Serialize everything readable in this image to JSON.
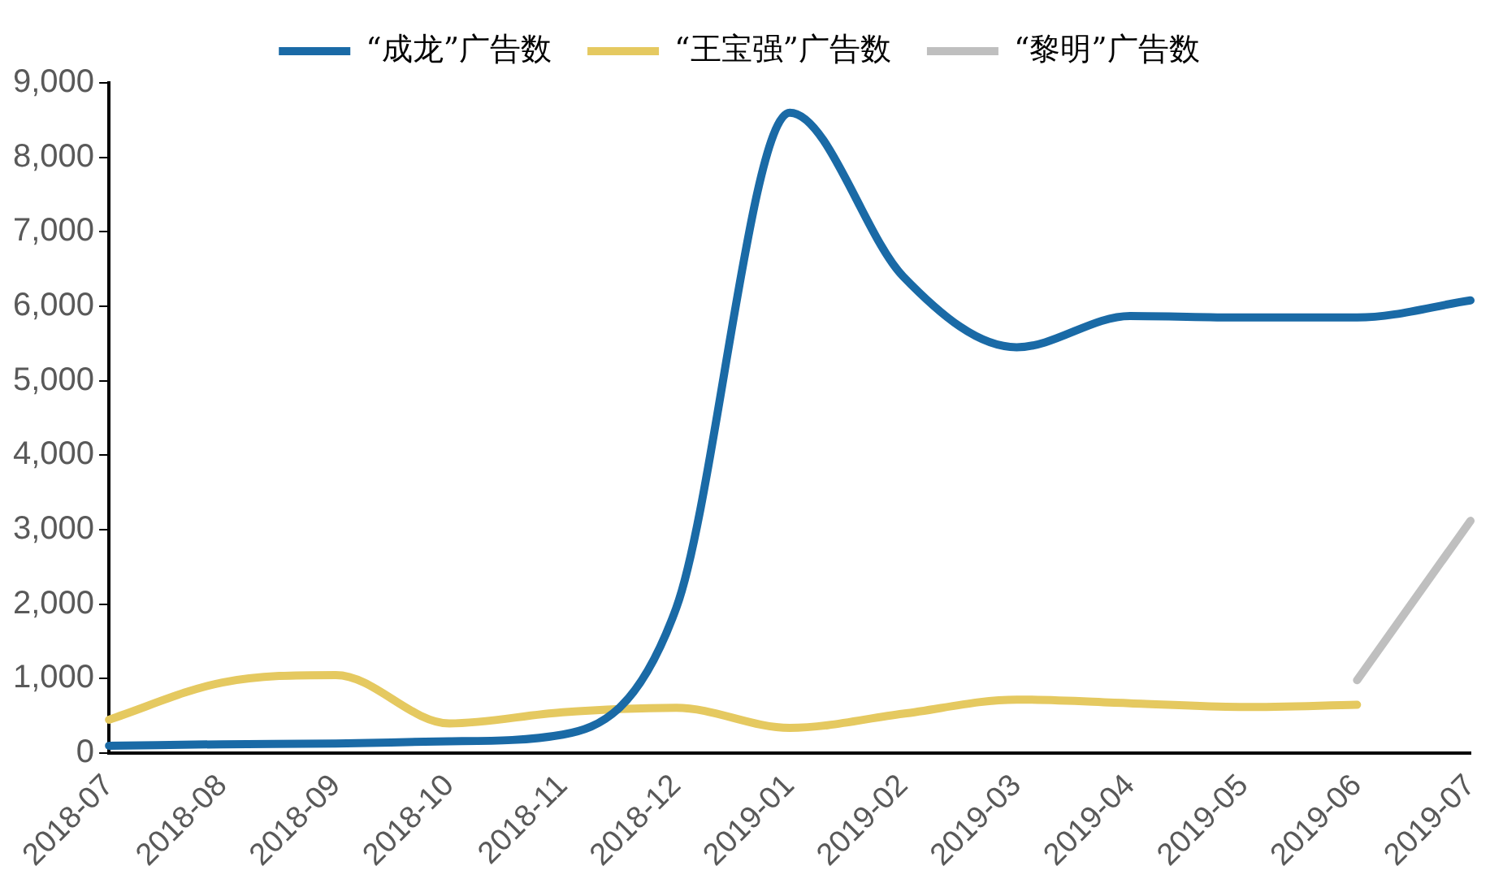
{
  "chart_data": {
    "type": "line",
    "categories": [
      "2018-07",
      "2018-08",
      "2018-09",
      "2018-10",
      "2018-11",
      "2018-12",
      "2019-01",
      "2019-02",
      "2019-03",
      "2019-04",
      "2019-05",
      "2019-06",
      "2019-07"
    ],
    "series": [
      {
        "name": "“成龙”广告数",
        "color": "#1a6aa6",
        "values": [
          100,
          120,
          130,
          160,
          250,
          1950,
          8600,
          6400,
          5450,
          5870,
          5850,
          5850,
          6080
        ]
      },
      {
        "name": "“王宝强”广告数",
        "color": "#e5c960",
        "values": [
          450,
          950,
          1050,
          400,
          550,
          610,
          340,
          530,
          720,
          670,
          620,
          650,
          null
        ]
      },
      {
        "name": "“黎明”广告数",
        "color": "#bfbfbf",
        "values": [
          null,
          null,
          null,
          null,
          null,
          null,
          null,
          null,
          null,
          null,
          null,
          980,
          3120
        ]
      }
    ],
    "ylim": [
      0,
      9000
    ],
    "yticks": [
      {
        "value": 0,
        "label": "0"
      },
      {
        "value": 1000,
        "label": "1,000"
      },
      {
        "value": 2000,
        "label": "2,000"
      },
      {
        "value": 3000,
        "label": "3,000"
      },
      {
        "value": 4000,
        "label": "4,000"
      },
      {
        "value": 5000,
        "label": "5,000"
      },
      {
        "value": 6000,
        "label": "6,000"
      },
      {
        "value": 7000,
        "label": "7,000"
      },
      {
        "value": 8000,
        "label": "8,000"
      },
      {
        "value": 9000,
        "label": "9,000"
      }
    ],
    "grid": false,
    "legend": "top",
    "marker": "none",
    "line_style": "solid"
  }
}
